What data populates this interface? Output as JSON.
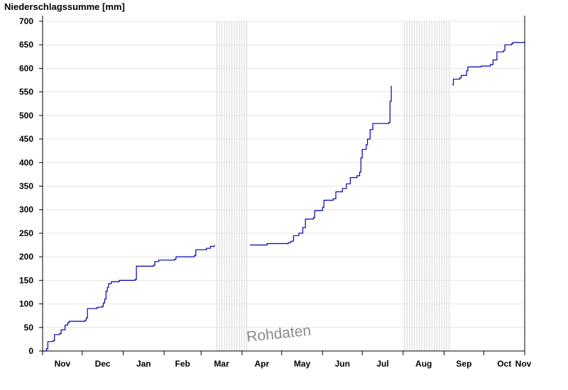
{
  "chart_data": {
    "type": "line",
    "title": "",
    "ylabel": "Niederschlagssumme [mm]",
    "xlabel": "",
    "ylim": [
      0,
      700
    ],
    "yticks": [
      0,
      50,
      100,
      150,
      200,
      250,
      300,
      350,
      400,
      450,
      500,
      550,
      600,
      650,
      700
    ],
    "x_domain_days": [
      0,
      365
    ],
    "x_tick_labels": [
      "Nov",
      "Dec",
      "Jan",
      "Feb",
      "Mar",
      "Apr",
      "May",
      "Jun",
      "Jul",
      "Aug",
      "Sep",
      "Oct",
      "Nov"
    ],
    "x_tick_days": [
      0,
      30,
      61,
      92,
      120,
      151,
      181,
      212,
      242,
      273,
      304,
      334,
      365
    ],
    "grid": "horizontal",
    "line_color": "#0000b0",
    "gap_fill_color": "#d4d4d4",
    "watermark": "Rohdaten",
    "missing_data_ranges_days": [
      [
        132,
        156
      ],
      [
        274,
        309
      ]
    ],
    "series": [
      {
        "segments": [
          [
            [
              0,
              0
            ],
            [
              3,
              5
            ],
            [
              4,
              20
            ],
            [
              8,
              22
            ],
            [
              9,
              35
            ],
            [
              13,
              37
            ],
            [
              14,
              45
            ],
            [
              17,
              55
            ],
            [
              19,
              60
            ],
            [
              20,
              63
            ],
            [
              32,
              65
            ],
            [
              33,
              70
            ],
            [
              34,
              90
            ],
            [
              41,
              92
            ],
            [
              42,
              93
            ],
            [
              45,
              95
            ],
            [
              46,
              102
            ],
            [
              47,
              110
            ],
            [
              48,
              127
            ],
            [
              49,
              135
            ],
            [
              50,
              143
            ],
            [
              52,
              147
            ],
            [
              58,
              150
            ],
            [
              70,
              152
            ],
            [
              71,
              180
            ],
            [
              84,
              182
            ],
            [
              85,
              190
            ],
            [
              88,
              193
            ],
            [
              100,
              195
            ],
            [
              101,
              200
            ],
            [
              115,
              203
            ],
            [
              116,
              215
            ],
            [
              124,
              218
            ],
            [
              127,
              222
            ],
            [
              130,
              225
            ]
          ],
          [
            [
              157,
              225
            ],
            [
              170,
              228
            ],
            [
              186,
              230
            ],
            [
              188,
              233
            ],
            [
              190,
              245
            ],
            [
              194,
              250
            ],
            [
              197,
              262
            ],
            [
              199,
              280
            ],
            [
              205,
              283
            ],
            [
              206,
              298
            ],
            [
              212,
              305
            ],
            [
              213,
              320
            ],
            [
              220,
              323
            ],
            [
              222,
              338
            ],
            [
              227,
              345
            ],
            [
              230,
              355
            ],
            [
              233,
              368
            ],
            [
              238,
              372
            ],
            [
              240,
              380
            ],
            [
              241,
              410
            ],
            [
              242,
              428
            ],
            [
              245,
              438
            ],
            [
              246,
              450
            ],
            [
              248,
              470
            ],
            [
              250,
              483
            ],
            [
              262,
              485
            ],
            [
              263,
              530
            ],
            [
              264,
              563
            ]
          ],
          [
            [
              310,
              565
            ],
            [
              311,
              577
            ],
            [
              316,
              580
            ],
            [
              317,
              585
            ],
            [
              321,
              595
            ],
            [
              322,
              603
            ],
            [
              332,
              605
            ],
            [
              339,
              608
            ],
            [
              341,
              618
            ],
            [
              344,
              635
            ],
            [
              349,
              638
            ],
            [
              350,
              650
            ],
            [
              355,
              652
            ],
            [
              356,
              655
            ],
            [
              365,
              658
            ]
          ]
        ]
      }
    ]
  }
}
